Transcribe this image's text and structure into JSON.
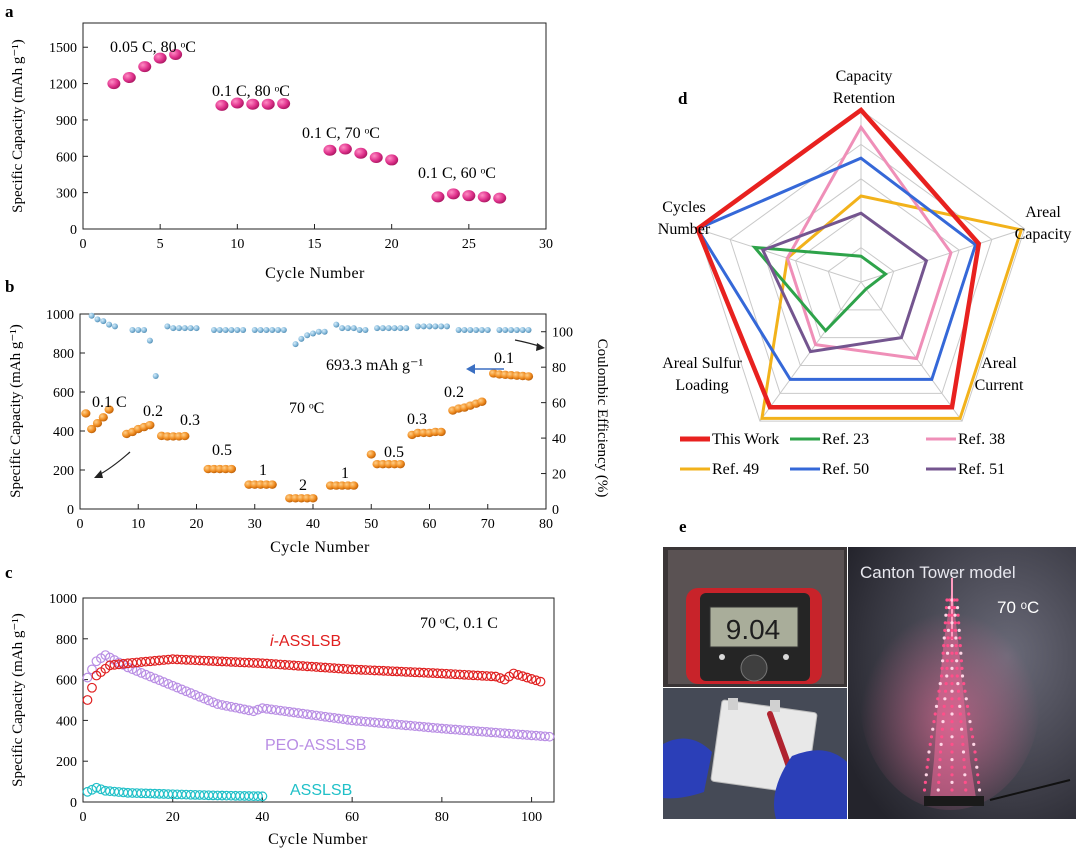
{
  "colors": {
    "pink": "#dc2f86",
    "blue_dots": "#7fb4d6",
    "orange": "#ee8a1f",
    "red": "#e02020",
    "purple": "#b98ee4",
    "cyan": "#20c0c8",
    "this_work": "#e8211f",
    "ref23": "#2ea34a",
    "ref38": "#ef8fb8",
    "ref49": "#f2b21b",
    "ref50": "#3568d8",
    "ref51": "#74558f"
  },
  "panel_labels": {
    "a": "a",
    "b": "b",
    "c": "c",
    "d": "d",
    "e": "e"
  },
  "chart_data": [
    {
      "id": "a",
      "type": "scatter",
      "xlabel": "Cycle  Number",
      "ylabel": "Specific Capacity (mAh g⁻¹)",
      "xlim": [
        0,
        30
      ],
      "ylim": [
        0,
        1700
      ],
      "xticks": [
        0,
        5,
        10,
        15,
        20,
        25,
        30
      ],
      "yticks": [
        0,
        300,
        600,
        900,
        1200,
        1500
      ],
      "series": [
        {
          "name": "0.05 C, 80 °C",
          "label": "0.05 C, 80 ᵒC",
          "x": [
            2,
            3,
            4,
            5,
            6
          ],
          "y": [
            1200,
            1250,
            1340,
            1410,
            1440
          ]
        },
        {
          "name": "0.1 C, 80 °C",
          "label": "0.1 C, 80 ᵒC",
          "x": [
            9,
            10,
            11,
            12,
            13
          ],
          "y": [
            1020,
            1040,
            1030,
            1030,
            1035
          ]
        },
        {
          "name": "0.1 C, 70 °C",
          "label": "0.1 C, 70 ᵒC",
          "x": [
            16,
            17,
            18,
            19,
            20
          ],
          "y": [
            650,
            660,
            625,
            590,
            570
          ]
        },
        {
          "name": "0.1 C, 60 °C",
          "label": "0.1 C, 60 ᵒC",
          "x": [
            23,
            24,
            25,
            26,
            27
          ],
          "y": [
            265,
            290,
            275,
            265,
            255
          ]
        }
      ]
    },
    {
      "id": "b",
      "type": "scatter",
      "xlabel": "Cycle  Number",
      "ylabel": "Specific Capacity (mAh g⁻¹)",
      "y2label": "Coulombic Efficiency (%)",
      "xlim": [
        0,
        80
      ],
      "ylim": [
        0,
        1000
      ],
      "y2lim": [
        0,
        110
      ],
      "xticks": [
        0,
        10,
        20,
        30,
        40,
        50,
        60,
        70,
        80
      ],
      "yticks": [
        0,
        200,
        400,
        600,
        800,
        1000
      ],
      "y2ticks": [
        0,
        20,
        40,
        60,
        80,
        100
      ],
      "temperature": "70 ᵒC",
      "annotation": "693.3 mAh g⁻¹",
      "rate_labels": [
        "0.1 C",
        "0.2",
        "0.3",
        "0.5",
        "1",
        "2",
        "1",
        "0.5",
        "0.3",
        "0.2",
        "0.1"
      ],
      "capacity": [
        {
          "x": [
            1,
            2,
            3,
            4,
            5
          ],
          "y": [
            490,
            410,
            440,
            470,
            510
          ]
        },
        {
          "x": [
            8,
            9,
            10,
            11,
            12
          ],
          "y": [
            385,
            395,
            410,
            420,
            430
          ]
        },
        {
          "x": [
            14,
            15,
            16,
            17,
            18
          ],
          "y": [
            375,
            372,
            372,
            372,
            374
          ]
        },
        {
          "x": [
            22,
            23,
            24,
            25,
            26
          ],
          "y": [
            205,
            205,
            205,
            205,
            205
          ]
        },
        {
          "x": [
            29,
            30,
            31,
            32,
            33
          ],
          "y": [
            125,
            125,
            125,
            125,
            125
          ]
        },
        {
          "x": [
            36,
            37,
            38,
            39,
            40
          ],
          "y": [
            55,
            55,
            55,
            55,
            55
          ]
        },
        {
          "x": [
            43,
            44,
            45,
            46,
            47
          ],
          "y": [
            120,
            120,
            120,
            120,
            120
          ]
        },
        {
          "x": [
            50,
            51,
            52,
            53,
            54,
            55
          ],
          "y": [
            280,
            230,
            230,
            230,
            230,
            230
          ]
        },
        {
          "x": [
            57,
            58,
            59,
            60,
            61,
            62
          ],
          "y": [
            380,
            390,
            390,
            390,
            395,
            395
          ]
        },
        {
          "x": [
            64,
            65,
            66,
            67,
            68,
            69
          ],
          "y": [
            505,
            515,
            520,
            530,
            540,
            550
          ]
        },
        {
          "x": [
            71,
            72,
            73,
            74,
            75,
            76,
            77
          ],
          "y": [
            695,
            690,
            688,
            686,
            684,
            682,
            680
          ]
        }
      ],
      "efficiency": {
        "x": [
          2,
          3,
          4,
          5,
          6,
          9,
          10,
          11,
          12,
          13,
          15,
          16,
          17,
          18,
          19,
          20,
          23,
          24,
          25,
          26,
          27,
          28,
          30,
          31,
          32,
          33,
          34,
          35,
          37,
          38,
          39,
          40,
          41,
          42,
          44,
          45,
          46,
          47,
          48,
          49,
          51,
          52,
          53,
          54,
          55,
          56,
          58,
          59,
          60,
          61,
          62,
          63,
          65,
          66,
          67,
          68,
          69,
          70,
          72,
          73,
          74,
          75,
          76,
          77
        ],
        "y": [
          109,
          107,
          106,
          104,
          103,
          101,
          101,
          101,
          95,
          75,
          103,
          102,
          102,
          102,
          102,
          102,
          101,
          101,
          101,
          101,
          101,
          101,
          101,
          101,
          101,
          101,
          101,
          101,
          93,
          96,
          98,
          99,
          100,
          100,
          104,
          102,
          102,
          102,
          101,
          101,
          102,
          102,
          102,
          102,
          102,
          102,
          103,
          103,
          103,
          103,
          103,
          103,
          101,
          101,
          101,
          101,
          101,
          101,
          101,
          101,
          101,
          101,
          101,
          101
        ]
      }
    },
    {
      "id": "c",
      "type": "scatter",
      "xlabel": "Cycle  Number",
      "ylabel": "Specific Capacity (mAh g⁻¹)",
      "xlim": [
        0,
        105
      ],
      "ylim": [
        0,
        1000
      ],
      "xticks": [
        0,
        20,
        40,
        60,
        80,
        100
      ],
      "yticks": [
        0,
        200,
        400,
        600,
        800,
        1000
      ],
      "condition": "70 ᵒC, 0.1 C",
      "series": [
        {
          "name": "i-ASSLSB",
          "label_prefix": "i",
          "label_suffix": "-ASSLSB",
          "count": 102,
          "points": [
            [
              1,
              500
            ],
            [
              3,
              620
            ],
            [
              6,
              670
            ],
            [
              10,
              680
            ],
            [
              20,
              700
            ],
            [
              40,
              680
            ],
            [
              60,
              650
            ],
            [
              80,
              630
            ],
            [
              92,
              615
            ],
            [
              94,
              600
            ],
            [
              96,
              630
            ],
            [
              102,
              590
            ]
          ]
        },
        {
          "name": "PEO-ASSLSB",
          "label": "PEO-ASSLSB",
          "count": 104,
          "points": [
            [
              1,
              610
            ],
            [
              3,
              690
            ],
            [
              5,
              720
            ],
            [
              10,
              660
            ],
            [
              20,
              570
            ],
            [
              30,
              480
            ],
            [
              38,
              445
            ],
            [
              40,
              460
            ],
            [
              60,
              400
            ],
            [
              80,
              360
            ],
            [
              104,
              320
            ]
          ]
        },
        {
          "name": "ASSLSB",
          "label": "ASSLSB",
          "count": 40,
          "points": [
            [
              1,
              50
            ],
            [
              3,
              70
            ],
            [
              5,
              55
            ],
            [
              10,
              45
            ],
            [
              20,
              38
            ],
            [
              30,
              32
            ],
            [
              40,
              28
            ]
          ]
        }
      ]
    },
    {
      "id": "d",
      "type": "radar",
      "axes": [
        {
          "name": "Capacity Retention",
          "lines": [
            "Capacity",
            "Retention"
          ]
        },
        {
          "name": "Areal Capacity",
          "lines": [
            "Areal",
            "Capacity"
          ]
        },
        {
          "name": "Areal Current",
          "lines": [
            "Areal",
            "Current"
          ]
        },
        {
          "name": "Areal Sulfur Loading",
          "lines": [
            "Areal  Sulfur",
            "Loading"
          ]
        },
        {
          "name": "Cycles Number",
          "lines": [
            "Cycles",
            "Number"
          ]
        }
      ],
      "levels": 5,
      "series": [
        {
          "name": "Ref. 49",
          "values": [
            0.5,
            0.98,
            0.98,
            0.98,
            0.45
          ]
        },
        {
          "name": "Ref. 38",
          "values": [
            0.9,
            0.55,
            0.55,
            0.45,
            0.45
          ]
        },
        {
          "name": "Ref. 23",
          "values": [
            0.15,
            0.15,
            0.05,
            0.35,
            0.65
          ]
        },
        {
          "name": "Ref. 51",
          "values": [
            0.4,
            0.4,
            0.4,
            0.5,
            0.6
          ]
        },
        {
          "name": "Ref. 50",
          "values": [
            0.72,
            0.7,
            0.7,
            0.7,
            1.0
          ]
        },
        {
          "name": "This Work",
          "values": [
            1.0,
            0.72,
            0.9,
            0.9,
            1.0
          ]
        }
      ],
      "legend": [
        "This Work",
        "Ref. 23",
        "Ref. 38",
        "Ref. 49",
        "Ref. 50",
        "Ref. 51"
      ]
    }
  ],
  "photo_e": {
    "title": "Canton Tower model",
    "temperature": "70 ᵒC",
    "meter_reading": "9.04"
  }
}
